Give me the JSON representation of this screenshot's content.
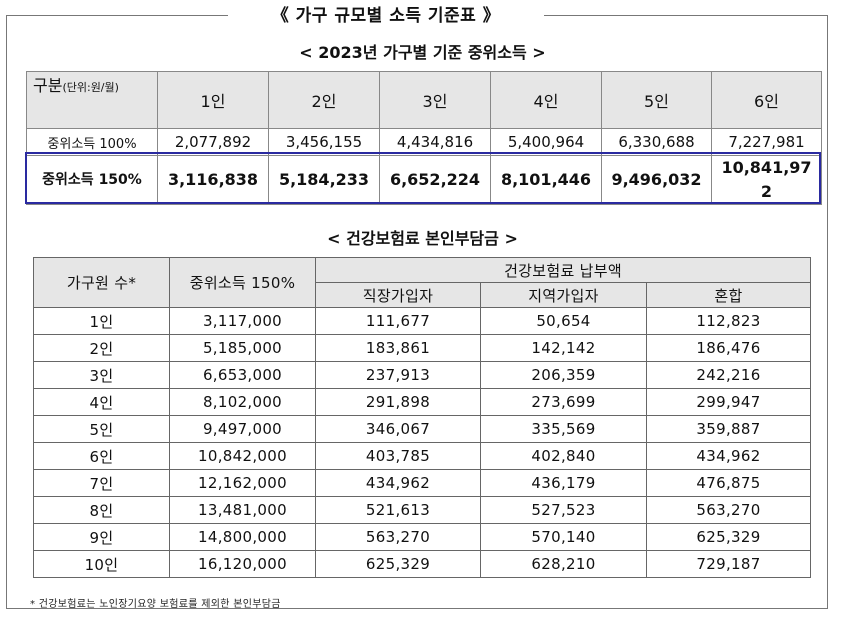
{
  "main_title": "《 가구 규모별 소득 기준표 》",
  "table1": {
    "title": "< 2023년 가구별 기준 중위소득 >",
    "corner_label": "구분",
    "corner_unit": "(단위:원/월)",
    "headers": [
      "1인",
      "2인",
      "3인",
      "4인",
      "5인",
      "6인"
    ],
    "rows": [
      {
        "label": "중위소득 100%",
        "values": [
          "2,077,892",
          "3,456,155",
          "4,434,816",
          "5,400,964",
          "6,330,688",
          "7,227,981"
        ]
      },
      {
        "label": "중위소득 150%",
        "values": [
          "3,116,838",
          "5,184,233",
          "6,652,224",
          "8,101,446",
          "9,496,032",
          "10,841,972"
        ]
      }
    ]
  },
  "table2": {
    "title": "< 건강보험료 본인부담금 >",
    "col_household": "가구원 수*",
    "col_income": "중위소득 150%",
    "col_group": "건강보험료 납부액",
    "subcols": [
      "직장가입자",
      "지역가입자",
      "혼합"
    ],
    "rows": [
      [
        "1인",
        "3,117,000",
        "111,677",
        "50,654",
        "112,823"
      ],
      [
        "2인",
        "5,185,000",
        "183,861",
        "142,142",
        "186,476"
      ],
      [
        "3인",
        "6,653,000",
        "237,913",
        "206,359",
        "242,216"
      ],
      [
        "4인",
        "8,102,000",
        "291,898",
        "273,699",
        "299,947"
      ],
      [
        "5인",
        "9,497,000",
        "346,067",
        "335,569",
        "359,887"
      ],
      [
        "6인",
        "10,842,000",
        "403,785",
        "402,840",
        "434,962"
      ],
      [
        "7인",
        "12,162,000",
        "434,962",
        "436,179",
        "476,875"
      ],
      [
        "8인",
        "13,481,000",
        "521,613",
        "527,523",
        "563,270"
      ],
      [
        "9인",
        "14,800,000",
        "563,270",
        "570,140",
        "625,329"
      ],
      [
        "10인",
        "16,120,000",
        "625,329",
        "628,210",
        "729,187"
      ]
    ]
  },
  "footnote": "* 건강보험료는 노인장기요양 보험료를 제외한 본인부담금",
  "colors": {
    "header_bg": "#e6e6e6",
    "highlight_border": "#2a2aa0"
  }
}
